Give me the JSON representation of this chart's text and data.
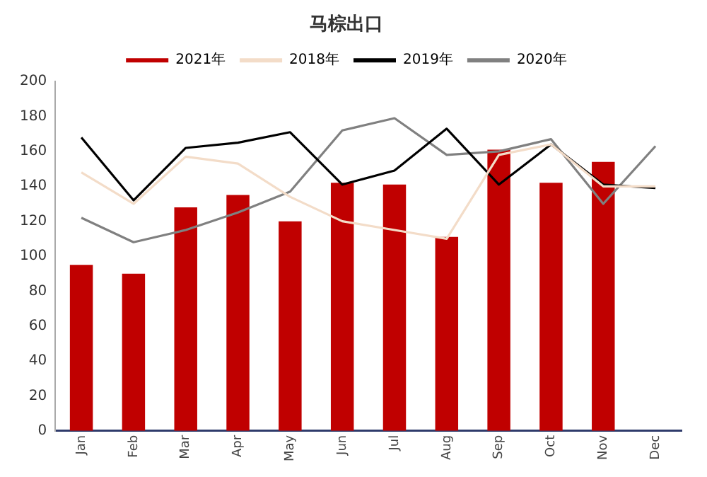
{
  "chart_data": {
    "type": "bar",
    "title": "马棕出口",
    "categories": [
      "Jan",
      "Feb",
      "Mar",
      "Apr",
      "May",
      "Jun",
      "Jul",
      "Aug",
      "Sep",
      "Oct",
      "Nov",
      "Dec"
    ],
    "series": [
      {
        "name": "2021年",
        "color": "#c00000",
        "values": [
          95,
          90,
          128,
          135,
          120,
          142,
          141,
          111,
          161,
          142,
          154,
          null
        ]
      },
      {
        "name": "2018年",
        "type": "line",
        "color": "#f3dcc8",
        "values": [
          148,
          130,
          157,
          153,
          134,
          120,
          115,
          110,
          158,
          164,
          140,
          140
        ]
      },
      {
        "name": "2019年",
        "type": "line",
        "color": "#000000",
        "values": [
          168,
          132,
          162,
          165,
          171,
          141,
          149,
          173,
          141,
          164,
          141,
          139
        ]
      },
      {
        "name": "2020年",
        "type": "line",
        "color": "#808080",
        "values": [
          122,
          108,
          115,
          125,
          137,
          172,
          179,
          158,
          160,
          167,
          130,
          163
        ]
      }
    ],
    "ylim": [
      0,
      200
    ],
    "yticks": [
      0,
      20,
      40,
      60,
      80,
      100,
      120,
      140,
      160,
      180,
      200
    ],
    "grid": false,
    "legend": "top",
    "marker": "none"
  }
}
